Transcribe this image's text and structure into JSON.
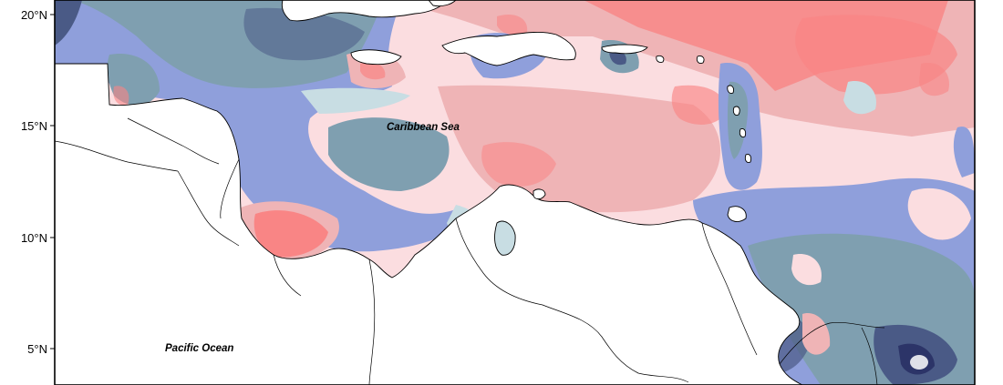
{
  "map": {
    "latitude_labels": [
      "20°N",
      "15°N",
      "10°N",
      "5°N"
    ],
    "place_labels": {
      "caribbean_sea": "Caribbean Sea",
      "pacific_ocean": "Pacific Ocean"
    },
    "colors": {
      "strong_blue": "#4a5a86",
      "mid_blue": "#7f9fb0",
      "light_blue": "#8f9fdb",
      "pale_blue": "#c8dde3",
      "pale_pink": "#fbdde0",
      "mid_pink": "#efb4b6",
      "strong_pink": "#f98585",
      "land": "#ffffff",
      "border": "#000000"
    }
  }
}
